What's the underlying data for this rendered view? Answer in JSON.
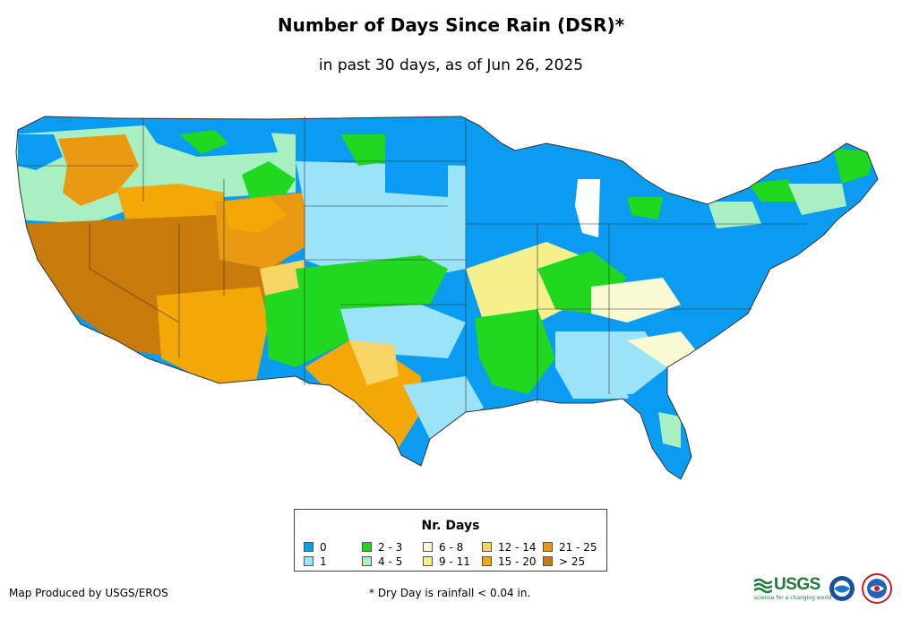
{
  "title": "Number of Days Since Rain (DSR)*",
  "subtitle": "in past 30 days, as of Jun 26, 2025",
  "legend": {
    "title": "Nr. Days",
    "items": [
      {
        "label": "0",
        "color": "#0a9cf0"
      },
      {
        "label": "1",
        "color": "#9be3f8"
      },
      {
        "label": "2 - 3",
        "color": "#1fd81f"
      },
      {
        "label": "4 - 5",
        "color": "#a8f0c2"
      },
      {
        "label": "6 - 8",
        "color": "#fafad2"
      },
      {
        "label": "9 - 11",
        "color": "#f5f08c"
      },
      {
        "label": "12 - 14",
        "color": "#f7d565"
      },
      {
        "label": "15 - 20",
        "color": "#f3a808"
      },
      {
        "label": "21 - 25",
        "color": "#e99a12"
      },
      {
        "label": "> 25",
        "color": "#c87a0a"
      }
    ]
  },
  "credit": "Map Produced by USGS/EROS",
  "footnote": "* Dry Day is rainfall < 0.04 in.",
  "logos": {
    "usgs_text": "USGS",
    "usgs_tagline": "science for a changing world",
    "noaa_text": "NOAA"
  }
}
